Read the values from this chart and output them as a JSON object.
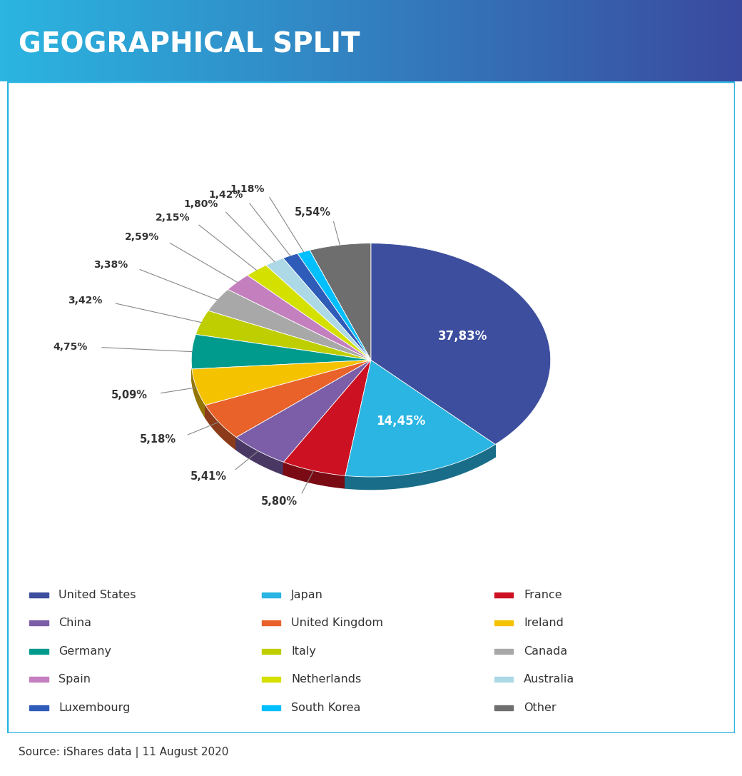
{
  "title": "GEOGRAPHICAL SPLIT",
  "title_bg_color_left": "#2BB5E0",
  "title_bg_color_right": "#3A4A9F",
  "source_text": "Source: iShares data | 11 August 2020",
  "border_color": "#2BB5E0",
  "labels": [
    "United States",
    "Japan",
    "France",
    "China",
    "United Kingdom",
    "Ireland",
    "Germany",
    "Italy",
    "Canada",
    "Spain",
    "Netherlands",
    "Australia",
    "Luxembourg",
    "South Korea",
    "Other"
  ],
  "values": [
    37.83,
    14.45,
    5.8,
    5.41,
    5.18,
    5.09,
    4.75,
    3.42,
    3.38,
    2.59,
    2.15,
    1.8,
    1.42,
    1.18,
    5.54
  ],
  "colors": [
    "#3D4E9E",
    "#2AB5E2",
    "#CC1122",
    "#7B5EA7",
    "#E8622A",
    "#F5C200",
    "#009B8D",
    "#BECE00",
    "#A8A8A8",
    "#C47FBE",
    "#D4E000",
    "#ADD8E6",
    "#2E5CB8",
    "#00BFFF",
    "#6E6E6E"
  ],
  "display_values": [
    "37,83%",
    "14,45%",
    "5,80%",
    "5,41%",
    "5,18%",
    "5,09%",
    "4,75%",
    "3,42%",
    "3,38%",
    "2,59%",
    "2,15%",
    "1,80%",
    "1,42%",
    "1,18%",
    "5,54%"
  ],
  "label_positions": [
    {
      "r_text": 0.62,
      "outside": false
    },
    {
      "r_text": 0.68,
      "outside": false
    },
    {
      "r_text": 1.22,
      "outside": true
    },
    {
      "r_text": 1.22,
      "outside": true
    },
    {
      "r_text": 1.22,
      "outside": true
    },
    {
      "r_text": 1.22,
      "outside": true
    },
    {
      "r_text": 1.3,
      "outside": true
    },
    {
      "r_text": 1.3,
      "outside": true
    },
    {
      "r_text": 1.38,
      "outside": true
    },
    {
      "r_text": 1.38,
      "outside": true
    },
    {
      "r_text": 1.46,
      "outside": true
    },
    {
      "r_text": 1.46,
      "outside": true
    },
    {
      "r_text": 1.54,
      "outside": true
    },
    {
      "r_text": 1.54,
      "outside": true
    },
    {
      "r_text": 1.22,
      "outside": true
    }
  ]
}
